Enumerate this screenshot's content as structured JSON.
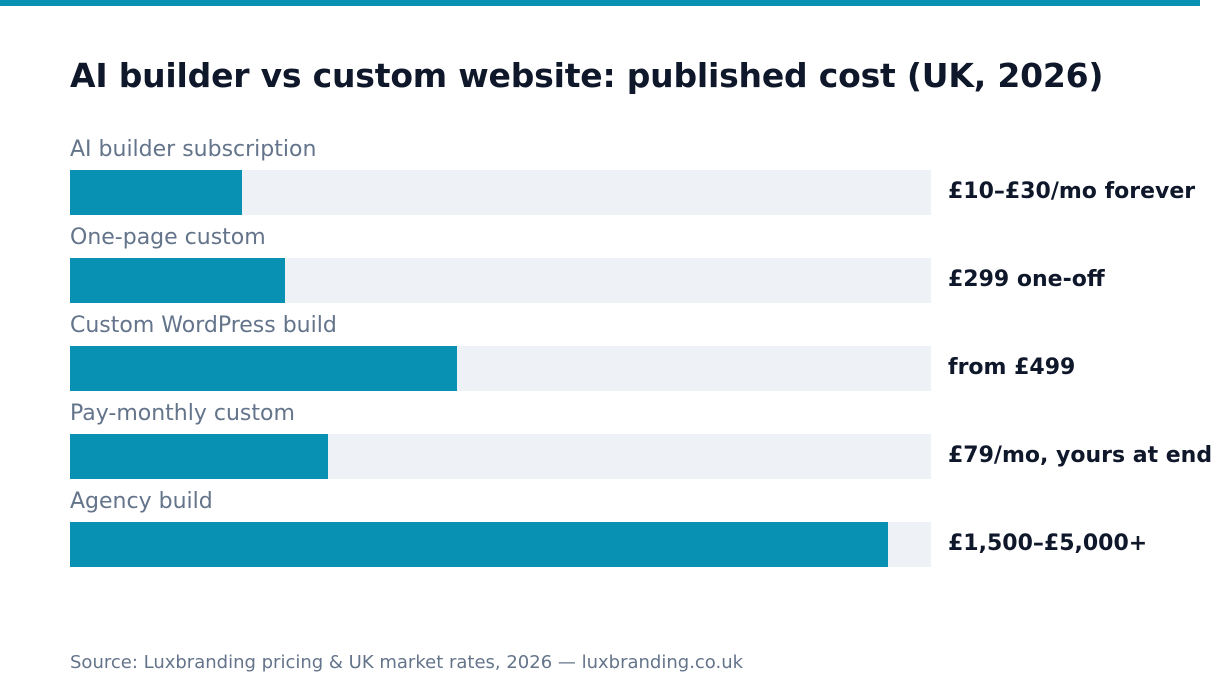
{
  "accent_color": "#0891b2",
  "track_color": "#eef2f7",
  "chart_data": {
    "type": "bar",
    "orientation": "horizontal",
    "title": "AI builder vs custom website: published cost (UK, 2026)",
    "categories": [
      "AI builder subscription",
      "One-page custom",
      "Custom WordPress build",
      "Pay-monthly custom",
      "Agency build"
    ],
    "values": [
      0.2,
      0.25,
      0.45,
      0.3,
      0.95
    ],
    "value_labels": [
      "£10–£30/mo forever",
      "£299 one-off",
      "from £499",
      "£79/mo, yours at end",
      "£1,500–£5,000+"
    ],
    "xlim": [
      0,
      1
    ],
    "grid": false,
    "legend": "none"
  },
  "footer": {
    "source": "Source: Luxbranding pricing & UK market rates, 2026 — luxbranding.co.uk"
  }
}
